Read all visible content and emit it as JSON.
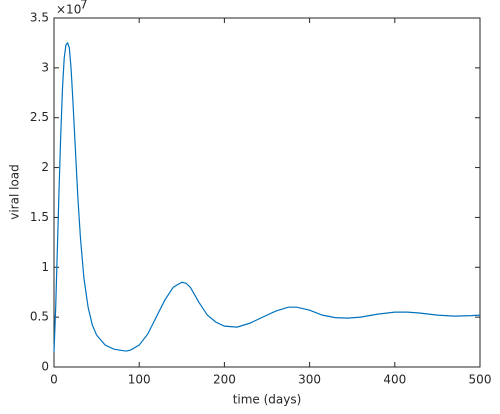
{
  "chart_data": {
    "type": "line",
    "xlabel": "time (days)",
    "ylabel": "viral load",
    "y_multiplier": {
      "base": "×10",
      "exponent": "7"
    },
    "xlim": [
      0,
      500
    ],
    "xticks": [
      0,
      100,
      200,
      300,
      400,
      500
    ],
    "ylim": [
      0,
      3.5
    ],
    "yticks": [
      0,
      0.5,
      1,
      1.5,
      2,
      2.5,
      3,
      3.5
    ],
    "grid": false,
    "x": [
      0,
      2,
      4,
      6,
      8,
      10,
      12,
      14,
      16,
      18,
      20,
      22,
      25,
      28,
      31,
      35,
      40,
      45,
      50,
      60,
      70,
      80,
      85,
      90,
      100,
      110,
      120,
      130,
      140,
      150,
      155,
      160,
      170,
      180,
      190,
      200,
      215,
      230,
      245,
      260,
      275,
      285,
      300,
      315,
      330,
      345,
      360,
      380,
      400,
      415,
      430,
      450,
      470,
      490,
      500
    ],
    "series": [
      {
        "color": "#0072bd",
        "values": [
          0.15,
          0.6,
          1.2,
          1.8,
          2.35,
          2.8,
          3.1,
          3.23,
          3.25,
          3.2,
          3.0,
          2.7,
          2.2,
          1.7,
          1.3,
          0.9,
          0.6,
          0.42,
          0.32,
          0.22,
          0.18,
          0.165,
          0.16,
          0.17,
          0.22,
          0.33,
          0.5,
          0.67,
          0.8,
          0.85,
          0.84,
          0.8,
          0.65,
          0.52,
          0.45,
          0.41,
          0.4,
          0.44,
          0.5,
          0.56,
          0.6,
          0.6,
          0.57,
          0.52,
          0.495,
          0.49,
          0.5,
          0.53,
          0.55,
          0.55,
          0.54,
          0.52,
          0.51,
          0.515,
          0.52
        ]
      }
    ]
  }
}
